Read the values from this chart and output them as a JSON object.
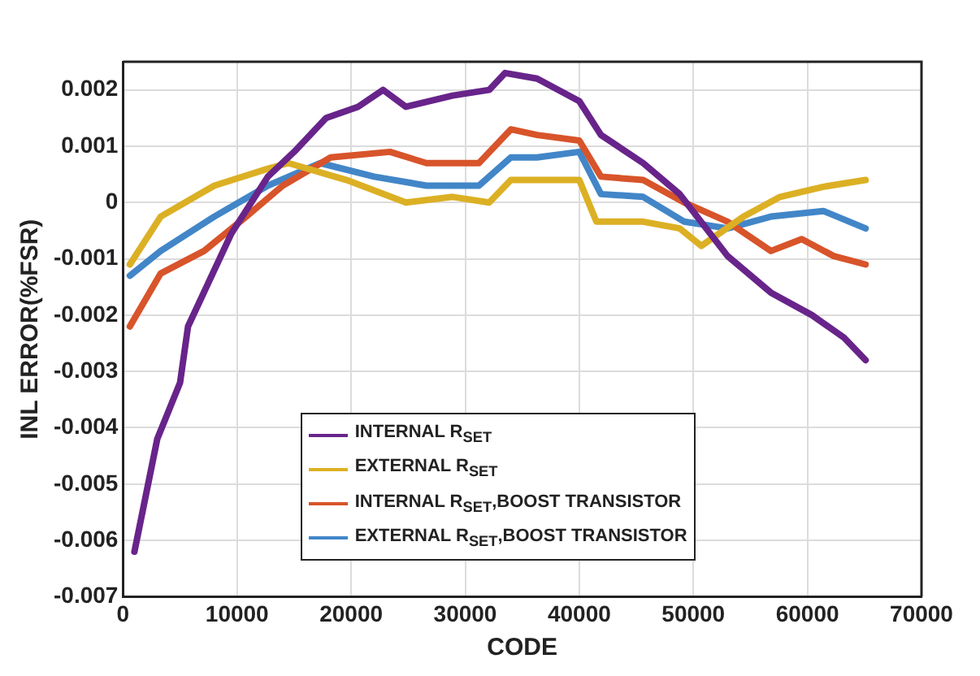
{
  "chart_data": {
    "type": "line",
    "xlabel": "CODE",
    "ylabel": "INL ERROR(%FSR)",
    "xlim": [
      0,
      70000
    ],
    "xticks": [
      0,
      10000,
      20000,
      30000,
      40000,
      50000,
      60000,
      70000
    ],
    "ylim": [
      -0.007,
      0.0025
    ],
    "yticks": [
      -0.007,
      -0.006,
      -0.005,
      -0.004,
      -0.003,
      -0.002,
      -0.001,
      0,
      0.001,
      0.002
    ],
    "grid": true,
    "legend": "bottom",
    "marker": "none",
    "line_style": "solid",
    "series": [
      {
        "name": "INTERNAL R$_{SET}$",
        "color": "#68248a",
        "x": [
          1000,
          3000,
          5000,
          5700,
          9500,
          12700,
          15000,
          17800,
          20600,
          22800,
          24800,
          28900,
          32100,
          33500,
          36300,
          40000,
          41900,
          45600,
          48800,
          53000,
          56800,
          60400,
          63200,
          65100
        ],
        "values": [
          -0.0062,
          -0.0042,
          -0.0032,
          -0.0022,
          -0.00055,
          0.00046,
          0.0009,
          0.0015,
          0.0017,
          0.002,
          0.0017,
          0.0019,
          0.002,
          0.0023,
          0.0022,
          0.0018,
          0.0012,
          0.0007,
          0.00015,
          -0.00095,
          -0.0016,
          -0.002,
          -0.0024,
          -0.0028
        ]
      },
      {
        "name": "EXTERNAL R$_{SET}$",
        "color": "#dcb024",
        "x": [
          600,
          3300,
          8000,
          12700,
          14500,
          19600,
          24800,
          28900,
          32100,
          34000,
          36300,
          40000,
          41500,
          45600,
          48800,
          50700,
          54400,
          57600,
          61400,
          65100
        ],
        "values": [
          -0.0011,
          -0.00025,
          0.0003,
          0.0006,
          0.0007,
          0.0004,
          0,
          0.0001,
          0,
          0.0004,
          0.0004,
          0.0004,
          -0.00034,
          -0.00034,
          -0.00046,
          -0.00077,
          -0.00025,
          0.0001,
          0.00028,
          0.0004
        ]
      },
      {
        "name": "INTERNAL R$_{SET}$,BOOST TRANSISTOR",
        "color": "#d8542a",
        "x": [
          600,
          3300,
          7100,
          10800,
          14000,
          18200,
          23400,
          26600,
          31200,
          34000,
          36300,
          40000,
          41900,
          45600,
          49200,
          53000,
          56800,
          59500,
          62300,
          65100
        ],
        "values": [
          -0.0022,
          -0.00126,
          -0.00086,
          -0.00025,
          0.0003,
          0.0008,
          0.0009,
          0.0007,
          0.0007,
          0.0013,
          0.0012,
          0.0011,
          0.00046,
          0.0004,
          0,
          -0.00034,
          -0.00086,
          -0.00065,
          -0.00095,
          -0.0011
        ]
      },
      {
        "name": "EXTERNAL R$_{SET}$,BOOST TRANSISTOR",
        "color": "#4286c8",
        "x": [
          600,
          3300,
          8000,
          12700,
          17300,
          22000,
          26600,
          31200,
          34000,
          36300,
          40000,
          41900,
          45600,
          49200,
          53000,
          56800,
          61400,
          65100
        ],
        "values": [
          -0.0013,
          -0.00086,
          -0.00025,
          0.0003,
          0.0007,
          0.00046,
          0.0003,
          0.0003,
          0.0008,
          0.0008,
          0.0009,
          0.00015,
          0.0001,
          -0.00034,
          -0.00046,
          -0.00025,
          -0.00015,
          -0.00046
        ]
      }
    ]
  }
}
